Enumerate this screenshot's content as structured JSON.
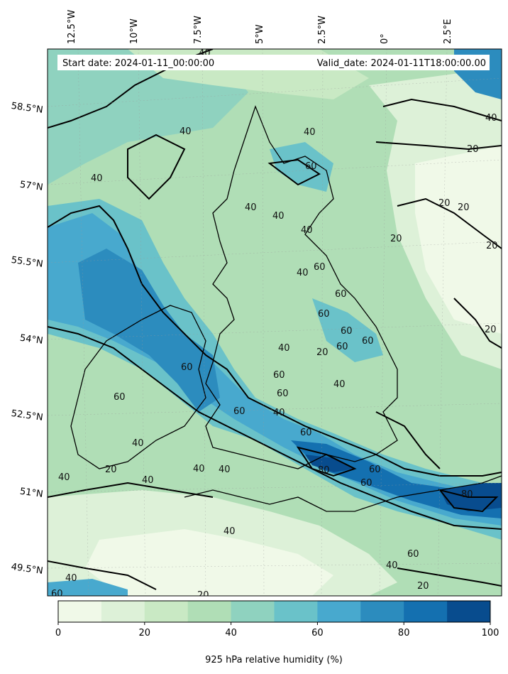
{
  "header": {
    "start_date": "Start date: 2024-01-11_00:00:00",
    "valid_date": "Valid_date: 2024-01-11T18:00:00.00"
  },
  "axes": {
    "lon_labels": [
      "12.5°W",
      "10°W",
      "7.5°W",
      "5°W",
      "2.5°W",
      "0°",
      "2.5°E"
    ],
    "lat_labels": [
      "58.5°N",
      "57°N",
      "55.5°N",
      "54°N",
      "52.5°N",
      "51°N",
      "49.5°N"
    ]
  },
  "contour_labels": [
    "40",
    "20",
    "40",
    "40",
    "40",
    "40",
    "20",
    "20",
    "20",
    "20",
    "20",
    "60",
    "40",
    "40",
    "40",
    "60",
    "60",
    "40",
    "40",
    "60",
    "60",
    "60",
    "60",
    "40",
    "60",
    "60",
    "40",
    "60",
    "60",
    "60",
    "20",
    "20",
    "60",
    "80",
    "80",
    "60",
    "60",
    "40",
    "40",
    "40",
    "40",
    "40",
    "40",
    "20",
    "60",
    "40",
    "20",
    "60",
    "40"
  ],
  "colorbar": {
    "label": "925 hPa relative humidity (%)",
    "ticks": [
      "0",
      "20",
      "40",
      "60",
      "80",
      "100"
    ],
    "levels": [
      0,
      10,
      20,
      30,
      40,
      50,
      60,
      70,
      80,
      90,
      100
    ],
    "colors": [
      "#f0f9e8",
      "#ddf1d8",
      "#c9e9c4",
      "#b0deb6",
      "#8fd2bf",
      "#6ac2c9",
      "#48a9ce",
      "#2c8cbe",
      "#1470b0",
      "#084c8e"
    ]
  }
}
